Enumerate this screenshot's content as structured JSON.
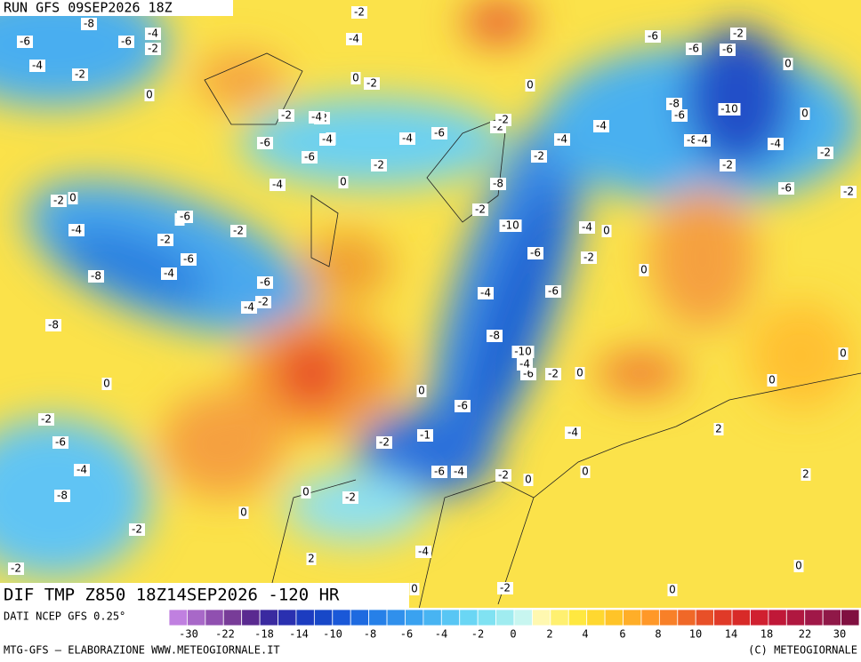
{
  "header": {
    "run": "RUN GFS 09SEP2026 18Z"
  },
  "map": {
    "title": "DIF TMP Z850 18Z14SEP2026 -120 HR",
    "contour_labels": [
      -8,
      -6,
      -6,
      -4,
      -2,
      -4,
      -2,
      0,
      -2,
      -4,
      -2,
      0,
      -6,
      -6,
      -2,
      0,
      -6,
      -8,
      -10,
      -6,
      -8,
      -2,
      -4,
      -2,
      0,
      -6,
      -2,
      -4,
      -4,
      -4,
      -2,
      -2,
      -2,
      0,
      -6,
      -2,
      -4,
      0,
      -6,
      -2,
      -4,
      -6,
      -4,
      -2,
      -4,
      0,
      -8,
      -10,
      -6,
      -4,
      0,
      -2,
      0,
      -2,
      -6,
      -6,
      -2,
      -4,
      -4,
      -2,
      -6,
      -8,
      -8,
      -4,
      -2,
      0,
      0,
      -2,
      -4,
      -6,
      -8,
      -10,
      -6,
      -4,
      -6,
      -1,
      -6,
      -4,
      -2,
      0,
      0,
      -2,
      0,
      -2,
      0,
      -4,
      -2,
      -6,
      -4,
      -8,
      -2,
      0,
      -4,
      -2,
      0,
      0,
      0,
      2,
      2,
      2,
      -2,
      -2,
      0,
      0,
      0,
      0
    ]
  },
  "legend": {
    "source": "DATI NCEP GFS 0.25°",
    "colors": [
      "#c080e0",
      "#a868c8",
      "#9050b0",
      "#783c98",
      "#5a2a90",
      "#3a2aa0",
      "#2a30b0",
      "#1c3cc0",
      "#1848c8",
      "#1a58d8",
      "#1e6ae0",
      "#2680e8",
      "#3090ec",
      "#3aa2f0",
      "#48b4f2",
      "#58c6f4",
      "#6ad6f4",
      "#80e2f2",
      "#a0ecf0",
      "#c8f6f0",
      "#fff8b0",
      "#fff070",
      "#ffe840",
      "#ffd830",
      "#ffc428",
      "#ffae28",
      "#ff9828",
      "#f88028",
      "#f06828",
      "#e85028",
      "#e03a28",
      "#d82a28",
      "#d02030",
      "#c01838",
      "#b01840",
      "#a01848",
      "#901848",
      "#801040"
    ],
    "ticks": [
      -30,
      -22,
      -18,
      -14,
      -10,
      -8,
      -6,
      -4,
      -2,
      0,
      2,
      4,
      6,
      8,
      10,
      14,
      18,
      22,
      30
    ]
  },
  "footer": {
    "left": "MTG-GFS – ELABORAZIONE WWW.METEOGIORNALE.IT",
    "right": "(C) METEOGIORNALE"
  }
}
